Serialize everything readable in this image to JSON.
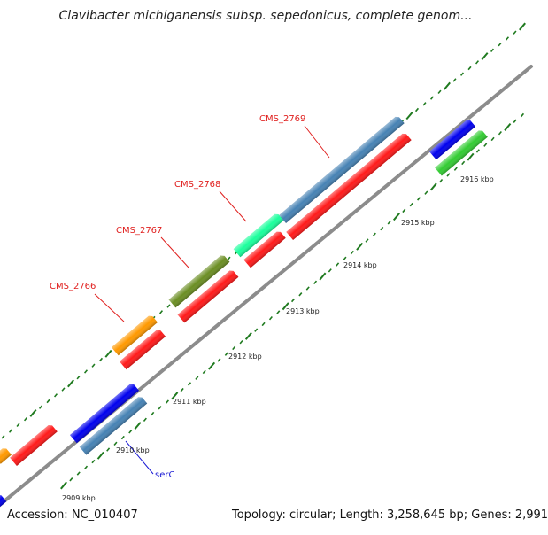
{
  "title": "Clavibacter michiganensis subsp. sepedonicus, complete genom...",
  "footer": {
    "accession": "Accession: NC_010407",
    "summary": "Topology: circular; Length: 3,258,645 bp; Genes: 2,991"
  },
  "scale_labels": [
    "2909 kbp",
    "2910 kbp",
    "2911 kbp",
    "2912 kbp",
    "2913 kbp",
    "2914 kbp",
    "2915 kbp",
    "2916 kbp"
  ],
  "gene_labels": [
    {
      "text": "CMS_2766",
      "color": "#e0201f"
    },
    {
      "text": "CMS_2767",
      "color": "#e0201f"
    },
    {
      "text": "CMS_2768",
      "color": "#e0201f"
    },
    {
      "text": "CMS_2769",
      "color": "#e0201f"
    },
    {
      "text": "serC",
      "color": "#1a1ad4"
    }
  ],
  "colors": {
    "backbone": "#8c8c8c",
    "tick": "#1f7a1f",
    "red": "#ff1a1a",
    "orange": "#ff9900",
    "olive": "#6b8e23",
    "aqua": "#1aff9c",
    "steelblue": "#4682b4",
    "blue": "#0000ee",
    "green": "#33cc33"
  }
}
